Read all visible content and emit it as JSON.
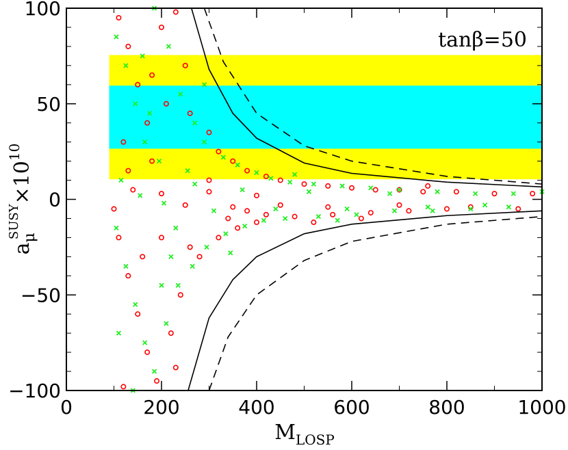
{
  "chart_data": {
    "type": "scatter",
    "annotation": "tanβ=50",
    "x_label": {
      "base": "M",
      "sub": "LOSP"
    },
    "y_label": {
      "base": "a",
      "sub": "μ",
      "sup": "SUSY",
      "times": "×10",
      "exp": "10"
    },
    "xlim": [
      0,
      1000
    ],
    "ylim": [
      -100,
      100
    ],
    "xticks": [
      0,
      200,
      400,
      600,
      800,
      1000
    ],
    "yticks": [
      {
        "value": -100,
        "label": "−100"
      },
      {
        "value": -50,
        "label": "−50"
      },
      0,
      50,
      100
    ],
    "xminor": [
      100,
      300,
      500,
      700,
      900
    ],
    "yminor": [
      -90,
      -80,
      -70,
      -60,
      -40,
      -30,
      -20,
      -10,
      10,
      20,
      30,
      40,
      60,
      70,
      80,
      90
    ],
    "bands": [
      {
        "xmin": 90,
        "xmax": 1000,
        "ymin": 10.5,
        "ymax": 75.5,
        "color": "#ffff00"
      },
      {
        "xmin": 90,
        "xmax": 1000,
        "ymin": 26.5,
        "ymax": 59.5,
        "color": "#00ffff"
      }
    ],
    "series": [
      {
        "marker": "circle",
        "color": "#ff0000",
        "x": [
          110,
          130,
          150,
          170,
          200,
          230,
          250,
          120,
          180,
          260,
          300,
          320,
          350,
          380,
          420,
          450,
          500,
          550,
          600,
          650,
          700,
          750,
          820,
          900,
          980,
          140,
          200,
          300,
          400,
          250,
          350,
          450,
          550,
          700,
          850,
          950,
          110,
          130,
          150,
          170,
          190,
          220,
          240,
          280,
          320,
          360,
          400,
          480,
          560,
          640,
          720,
          800,
          160,
          200,
          230,
          120,
          260,
          300,
          340,
          420,
          180,
          210,
          130,
          100,
          620,
          760,
          520,
          380
        ],
        "y": [
          95,
          80,
          60,
          40,
          90,
          98,
          70,
          30,
          20,
          45,
          35,
          25,
          20,
          15,
          12,
          10,
          8,
          7,
          6,
          5,
          5,
          4,
          4,
          3,
          3,
          5,
          3,
          4,
          2,
          -3,
          -4,
          -3,
          -4,
          -3,
          -4,
          -5,
          -20,
          -40,
          -60,
          -80,
          -95,
          -70,
          -50,
          -30,
          -20,
          -15,
          -12,
          -9,
          -8,
          -7,
          -6,
          -5,
          -30,
          -20,
          -88,
          -98,
          -25,
          10,
          -10,
          -8,
          65,
          50,
          15,
          -5,
          -10,
          7,
          -12,
          -6
        ]
      },
      {
        "marker": "cross",
        "color": "#22ee22",
        "x": [
          105,
          125,
          145,
          165,
          185,
          215,
          240,
          270,
          290,
          330,
          360,
          400,
          430,
          470,
          520,
          580,
          640,
          700,
          780,
          860,
          940,
          1000,
          115,
          155,
          205,
          270,
          310,
          370,
          440,
          510,
          590,
          680,
          760,
          880,
          105,
          125,
          145,
          165,
          185,
          210,
          235,
          265,
          295,
          335,
          375,
          415,
          460,
          530,
          610,
          690,
          770,
          850,
          930,
          140,
          200,
          230,
          175,
          195,
          255,
          345,
          290,
          110,
          160,
          220,
          480,
          570
        ],
        "y": [
          85,
          70,
          50,
          30,
          100,
          80,
          55,
          40,
          30,
          22,
          18,
          14,
          11,
          9,
          8,
          7,
          6,
          5,
          4,
          3,
          3,
          4,
          10,
          2,
          -2,
          8,
          -6,
          5,
          -5,
          4,
          -5,
          3,
          -4,
          -3,
          -15,
          -35,
          -55,
          -75,
          -90,
          -65,
          -45,
          -35,
          -25,
          -18,
          -14,
          -11,
          -10,
          -9,
          -8,
          -6,
          -6,
          -5,
          -4,
          -100,
          -45,
          -15,
          45,
          20,
          15,
          -28,
          60,
          -70,
          75,
          -30,
          13,
          -11
        ]
      }
    ],
    "curves": [
      {
        "dash": false,
        "x": [
          263,
          300,
          350,
          400,
          500,
          600,
          800,
          1000
        ],
        "y": [
          100,
          68,
          45,
          32,
          19,
          13.6,
          9,
          6.5
        ]
      },
      {
        "dash": true,
        "x": [
          290,
          330,
          400,
          500,
          600,
          800,
          1000
        ],
        "y": [
          100,
          72,
          45,
          28,
          20,
          12,
          8
        ]
      },
      {
        "dash": false,
        "x": [
          256,
          300,
          350,
          400,
          500,
          600,
          800,
          1000
        ],
        "y": [
          -100,
          -62,
          -42,
          -30,
          -18,
          -13,
          -8.5,
          -6
        ]
      },
      {
        "dash": true,
        "x": [
          300,
          340,
          400,
          500,
          600,
          800,
          1000
        ],
        "y": [
          -100,
          -72,
          -50,
          -32,
          -22,
          -13,
          -9
        ]
      }
    ]
  }
}
